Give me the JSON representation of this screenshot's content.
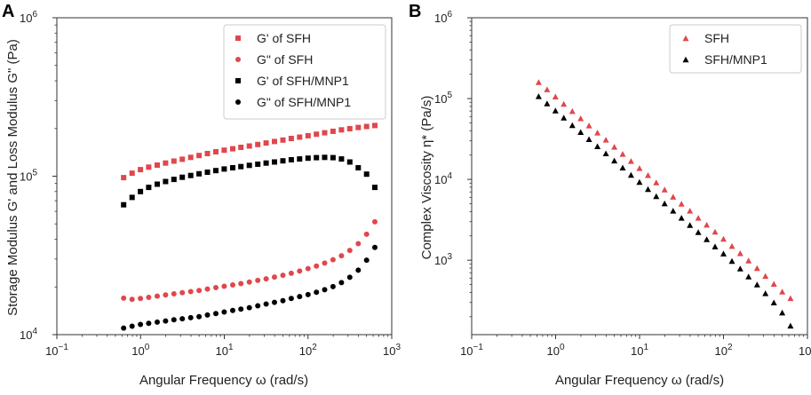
{
  "figure": {
    "panel_a_letter": "A",
    "panel_b_letter": "B"
  },
  "chart_data": [
    {
      "id": "A",
      "type": "scatter",
      "title": "",
      "xlabel": "Angular Frequency ω (rad/s)",
      "ylabel": "Storage Modulus G' and Loss Modulus G\" (Pa)",
      "xscale": "log",
      "yscale": "log",
      "xlim": [
        0.1,
        1000
      ],
      "ylim": [
        10000,
        1000000
      ],
      "grid": false,
      "legend_position": "top-right",
      "x_ticks": [
        {
          "value": 0.1,
          "base": "10",
          "exp": "−1"
        },
        {
          "value": 1,
          "base": "10",
          "exp": "0"
        },
        {
          "value": 10,
          "base": "10",
          "exp": "1"
        },
        {
          "value": 100,
          "base": "10",
          "exp": "2"
        },
        {
          "value": 1000,
          "base": "10",
          "exp": "3"
        }
      ],
      "y_ticks": [
        {
          "value": 10000,
          "base": "10",
          "exp": "4"
        },
        {
          "value": 100000,
          "base": "10",
          "exp": "5"
        },
        {
          "value": 1000000,
          "base": "10",
          "exp": "6"
        }
      ],
      "x": [
        0.628,
        0.791,
        0.996,
        1.25,
        1.58,
        1.99,
        2.5,
        3.15,
        3.97,
        5.0,
        6.29,
        7.92,
        9.97,
        12.6,
        15.8,
        19.9,
        25.1,
        31.6,
        39.8,
        50.1,
        63.1,
        79.4,
        100,
        126,
        158,
        199,
        251,
        316,
        398,
        501,
        628
      ],
      "series": [
        {
          "name": "G' of SFH",
          "marker": "square",
          "color": "#e0474c",
          "values": [
            98000,
            104500,
            110000,
            114000,
            117500,
            121000,
            124500,
            128000,
            131500,
            135000,
            139000,
            142500,
            146000,
            149000,
            152000,
            155000,
            158500,
            162000,
            165500,
            169000,
            173000,
            176500,
            180000,
            184000,
            188000,
            192000,
            196000,
            199500,
            203000,
            206000,
            209000
          ]
        },
        {
          "name": "G\" of SFH",
          "marker": "circle",
          "color": "#e0474c",
          "values": [
            17000,
            16700,
            16900,
            17200,
            17500,
            17800,
            18100,
            18400,
            18700,
            19000,
            19400,
            19800,
            20200,
            20600,
            21000,
            21500,
            22000,
            22500,
            23100,
            23700,
            24400,
            25200,
            26100,
            27100,
            28300,
            29700,
            31500,
            34000,
            37500,
            43000,
            51500
          ]
        },
        {
          "name": "G' of SFH/MNP1",
          "marker": "square",
          "color": "#000000",
          "values": [
            66000,
            73500,
            80000,
            85000,
            89000,
            92500,
            95500,
            98500,
            101000,
            103500,
            106000,
            108500,
            111000,
            113000,
            115000,
            117000,
            119000,
            121000,
            123000,
            125000,
            127000,
            128500,
            130000,
            131000,
            131500,
            131000,
            128500,
            123000,
            113000,
            103000,
            85000
          ]
        },
        {
          "name": "G\" of SFH/MNP1",
          "marker": "circle",
          "color": "#000000",
          "values": [
            11000,
            11300,
            11600,
            11800,
            12000,
            12200,
            12400,
            12600,
            12800,
            13000,
            13300,
            13600,
            13900,
            14200,
            14500,
            14800,
            15200,
            15600,
            16000,
            16400,
            16900,
            17400,
            17900,
            18500,
            19200,
            20100,
            21300,
            23000,
            25500,
            29500,
            35500
          ]
        }
      ]
    },
    {
      "id": "B",
      "type": "scatter",
      "title": "",
      "xlabel": "Angular Frequency ω (rad/s)",
      "ylabel": "Complex Viscosity η* (Pa/s)",
      "xscale": "log",
      "yscale": "log",
      "xlim": [
        0.1,
        1000
      ],
      "ylim": [
        120,
        1000000
      ],
      "grid": false,
      "legend_position": "top-right",
      "x_ticks": [
        {
          "value": 0.1,
          "base": "10",
          "exp": "−1"
        },
        {
          "value": 1,
          "base": "10",
          "exp": "0"
        },
        {
          "value": 10,
          "base": "10",
          "exp": "1"
        },
        {
          "value": 100,
          "base": "10",
          "exp": "2"
        },
        {
          "value": 1000,
          "base": "10",
          "exp": "3"
        }
      ],
      "y_ticks": [
        {
          "value": 1000,
          "base": "10",
          "exp": "3"
        },
        {
          "value": 10000,
          "base": "10",
          "exp": "4"
        },
        {
          "value": 100000,
          "base": "10",
          "exp": "5"
        },
        {
          "value": 1000000,
          "base": "10",
          "exp": "6"
        }
      ],
      "x": [
        0.628,
        0.791,
        0.996,
        1.25,
        1.58,
        1.99,
        2.5,
        3.15,
        3.97,
        5.0,
        6.29,
        7.92,
        9.97,
        12.6,
        15.8,
        19.9,
        25.1,
        31.6,
        39.8,
        50.1,
        63.1,
        79.4,
        100,
        126,
        158,
        199,
        251,
        316,
        398,
        501,
        628
      ],
      "series": [
        {
          "name": "SFH",
          "marker": "triangle",
          "color": "#e0474c",
          "values": [
            160000,
            130000,
            106000,
            86000,
            70000,
            57000,
            46500,
            38000,
            31000,
            25300,
            20700,
            16900,
            13800,
            11300,
            9200,
            7500,
            6100,
            5000,
            4100,
            3350,
            2750,
            2250,
            1840,
            1500,
            1220,
            990,
            800,
            640,
            510,
            410,
            340
          ]
        },
        {
          "name": "SFH/MNP1",
          "marker": "triangle",
          "color": "#000000",
          "values": [
            107000,
            87000,
            71000,
            58000,
            47000,
            38500,
            31500,
            25700,
            21000,
            17100,
            14000,
            11400,
            9300,
            7600,
            6200,
            5050,
            4100,
            3350,
            2730,
            2230,
            1820,
            1480,
            1210,
            980,
            790,
            630,
            500,
            390,
            300,
            225,
            155
          ]
        }
      ]
    }
  ]
}
